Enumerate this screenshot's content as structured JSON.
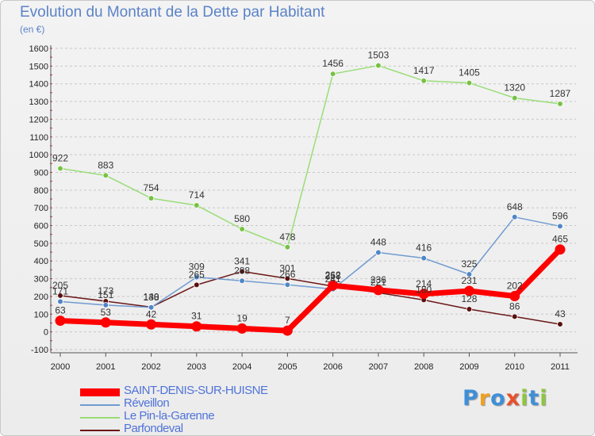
{
  "title": "Evolution du Montant de la Dette par Habitant",
  "unit_label": "(en €)",
  "logo": {
    "text": "Proxiti",
    "letters": [
      {
        "ch": "P",
        "color": "#3f8fd8"
      },
      {
        "ch": "r",
        "color": "#f0a020"
      },
      {
        "ch": "o",
        "color": "#3f8fd8"
      },
      {
        "ch": "x",
        "color": "#e8502a"
      },
      {
        "ch": "i",
        "color": "#8dc63f"
      },
      {
        "ch": "t",
        "color": "#3f8fd8"
      },
      {
        "ch": "i",
        "color": "#8dc63f"
      }
    ]
  },
  "chart_data": {
    "type": "line",
    "x": [
      "2000",
      "2001",
      "2002",
      "2003",
      "2004",
      "2005",
      "2006",
      "2007",
      "2008",
      "2009",
      "2010",
      "2011"
    ],
    "ylim": [
      -100,
      1600
    ],
    "yticks": [
      -100,
      0,
      100,
      200,
      300,
      400,
      500,
      600,
      700,
      800,
      900,
      1000,
      1100,
      1200,
      1300,
      1400,
      1500,
      1600
    ],
    "grid": "horizontal dashed",
    "legend": "bottom-left",
    "series": [
      {
        "name": "Parfondeval",
        "color": "#6b1717",
        "marker_color": "#5a0f0f",
        "line_width": 1.5,
        "values": [
          205,
          173,
          140,
          265,
          341,
          301,
          258,
          221,
          180,
          128,
          86,
          43
        ]
      },
      {
        "name": "Réveillon",
        "color": "#6f9bd0",
        "marker_color": "#4f86c6",
        "line_width": 1.5,
        "values": [
          171,
          151,
          138,
          309,
          288,
          266,
          241,
          448,
          416,
          325,
          648,
          596
        ]
      },
      {
        "name": "Le Pin-la-Garenne",
        "color": "#99dd77",
        "marker_color": "#77c244",
        "line_width": 1.5,
        "values": [
          922,
          883,
          754,
          714,
          580,
          478,
          1456,
          1503,
          1417,
          1405,
          1320,
          1287
        ]
      },
      {
        "name": "SAINT-DENIS-SUR-HUISNE",
        "color": "#ff0000",
        "marker_color": "#ff0000",
        "line_width": 7,
        "values": [
          63,
          53,
          42,
          31,
          19,
          7,
          262,
          236,
          214,
          231,
          202,
          465
        ]
      }
    ],
    "legend_order": [
      "SAINT-DENIS-SUR-HUISNE",
      "Réveillon",
      "Le Pin-la-Garenne",
      "Parfondeval"
    ]
  }
}
